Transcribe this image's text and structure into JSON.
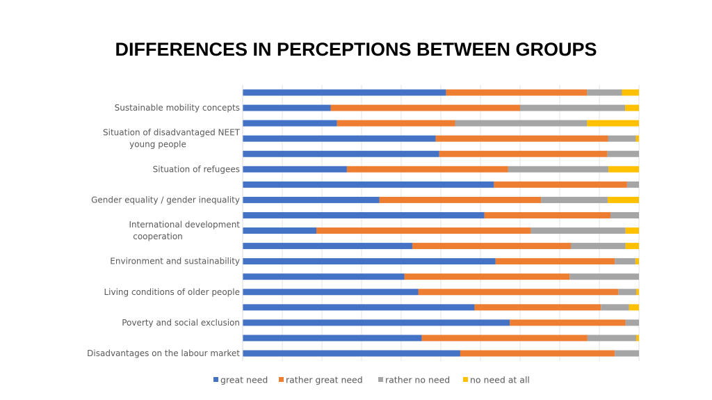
{
  "slide": {
    "title": "DIFFERENCES IN PERCEPTIONS BETWEEN GROUPS"
  },
  "chart_data": {
    "type": "bar",
    "orientation": "horizontal",
    "stacked": "percent",
    "categories": [
      "",
      "Sustainable mobility concepts",
      "",
      "Situation of disadvantaged NEET young people",
      "",
      "Situation of refugees",
      "",
      "Gender equality / gender inequality",
      "",
      "International development cooperation",
      "",
      "Environment and sustainability",
      "",
      "Living conditions of older people",
      "",
      "Poverty and social exclusion",
      "",
      "Disadvantages on the labour market"
    ],
    "series": [
      {
        "name": "great need",
        "color": "#4472C4",
        "values": [
          51.3,
          22.2,
          23.8,
          48.7,
          49.6,
          26.3,
          63.4,
          34.5,
          61.0,
          18.6,
          42.8,
          63.8,
          40.8,
          44.3,
          58.5,
          67.4,
          45.2,
          54.9
        ]
      },
      {
        "name": "rather great need",
        "color": "#ED7D31",
        "values": [
          35.6,
          47.8,
          29.8,
          43.5,
          42.4,
          40.7,
          33.6,
          40.8,
          31.8,
          54.1,
          40.0,
          30.1,
          41.7,
          50.5,
          31.9,
          29.2,
          41.8,
          39.0
        ]
      },
      {
        "name": "rather no need",
        "color": "#A5A5A5",
        "values": [
          8.8,
          26.5,
          33.3,
          7.0,
          8.0,
          25.3,
          3.0,
          16.8,
          7.2,
          23.9,
          13.8,
          5.2,
          17.5,
          4.5,
          7.1,
          3.4,
          12.3,
          6.1
        ]
      },
      {
        "name": "no need at all",
        "color": "#FFC000",
        "values": [
          4.3,
          3.5,
          13.1,
          0.8,
          0.0,
          7.7,
          0.0,
          7.9,
          0.0,
          3.4,
          3.4,
          0.9,
          0.0,
          0.7,
          2.5,
          0.0,
          0.7,
          0.0
        ]
      }
    ],
    "xlim": [
      0,
      100
    ],
    "grid": true,
    "legend_position": "bottom"
  }
}
